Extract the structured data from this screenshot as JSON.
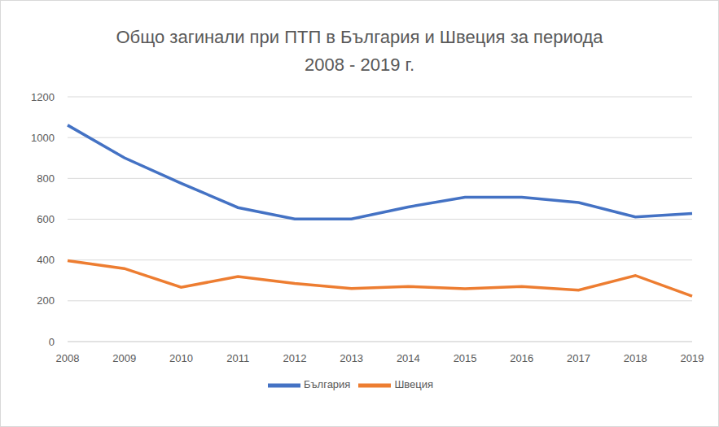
{
  "chart_data": {
    "type": "line",
    "title": "Общо загинали при ПТП в България и Швеция за периода 2008 - 2019 г.",
    "categories": [
      "2008",
      "2009",
      "2010",
      "2011",
      "2012",
      "2013",
      "2014",
      "2015",
      "2016",
      "2017",
      "2018",
      "2019"
    ],
    "series": [
      {
        "name": "България",
        "color": "#4472c4",
        "values": [
          1061,
          901,
          776,
          657,
          601,
          601,
          660,
          708,
          708,
          682,
          611,
          628
        ]
      },
      {
        "name": "Швеция",
        "color": "#ed7d31",
        "values": [
          397,
          358,
          266,
          319,
          285,
          260,
          270,
          259,
          270,
          252,
          324,
          223
        ]
      }
    ],
    "ylim": [
      0,
      1200
    ],
    "yticks": [
      0,
      200,
      400,
      600,
      800,
      1000,
      1200
    ],
    "grid": true,
    "legend": "bottom"
  }
}
